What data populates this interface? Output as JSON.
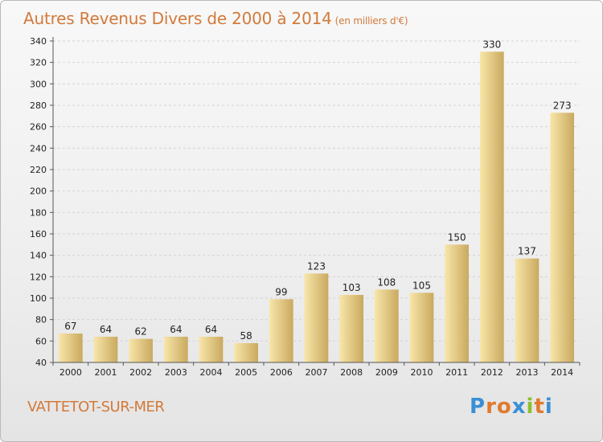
{
  "header": {
    "title": "Autres Revenus Divers de 2000 à 2014",
    "unit": "(en milliers d'€)"
  },
  "footer": {
    "commune": "VATTETOT-SUR-MER",
    "logo_text": "Proxiti"
  },
  "colors": {
    "title": "#d27a3a",
    "bar_light": "#f7e2a2",
    "bar_dark": "#c8a85c",
    "logo": [
      "#3a8fd6",
      "#e07a2e",
      "#e07a2e",
      "#3a8fd6",
      "#8cbf2e",
      "#e07a2e",
      "#3a8fd6"
    ]
  },
  "chart_data": {
    "type": "bar",
    "title": "Autres Revenus Divers de 2000 à 2014",
    "subtitle": "(en milliers d'€)",
    "xlabel": "",
    "ylabel": "",
    "categories": [
      "2000",
      "2001",
      "2002",
      "2003",
      "2004",
      "2005",
      "2006",
      "2007",
      "2008",
      "2009",
      "2010",
      "2011",
      "2012",
      "2013",
      "2014"
    ],
    "values": [
      67,
      64,
      62,
      64,
      64,
      58,
      99,
      123,
      103,
      108,
      105,
      150,
      330,
      137,
      273
    ],
    "ylim": [
      40,
      340
    ],
    "yticks": [
      40,
      60,
      80,
      100,
      120,
      140,
      160,
      180,
      200,
      220,
      240,
      260,
      280,
      300,
      320,
      340
    ],
    "grid": true,
    "data_labels": true
  }
}
